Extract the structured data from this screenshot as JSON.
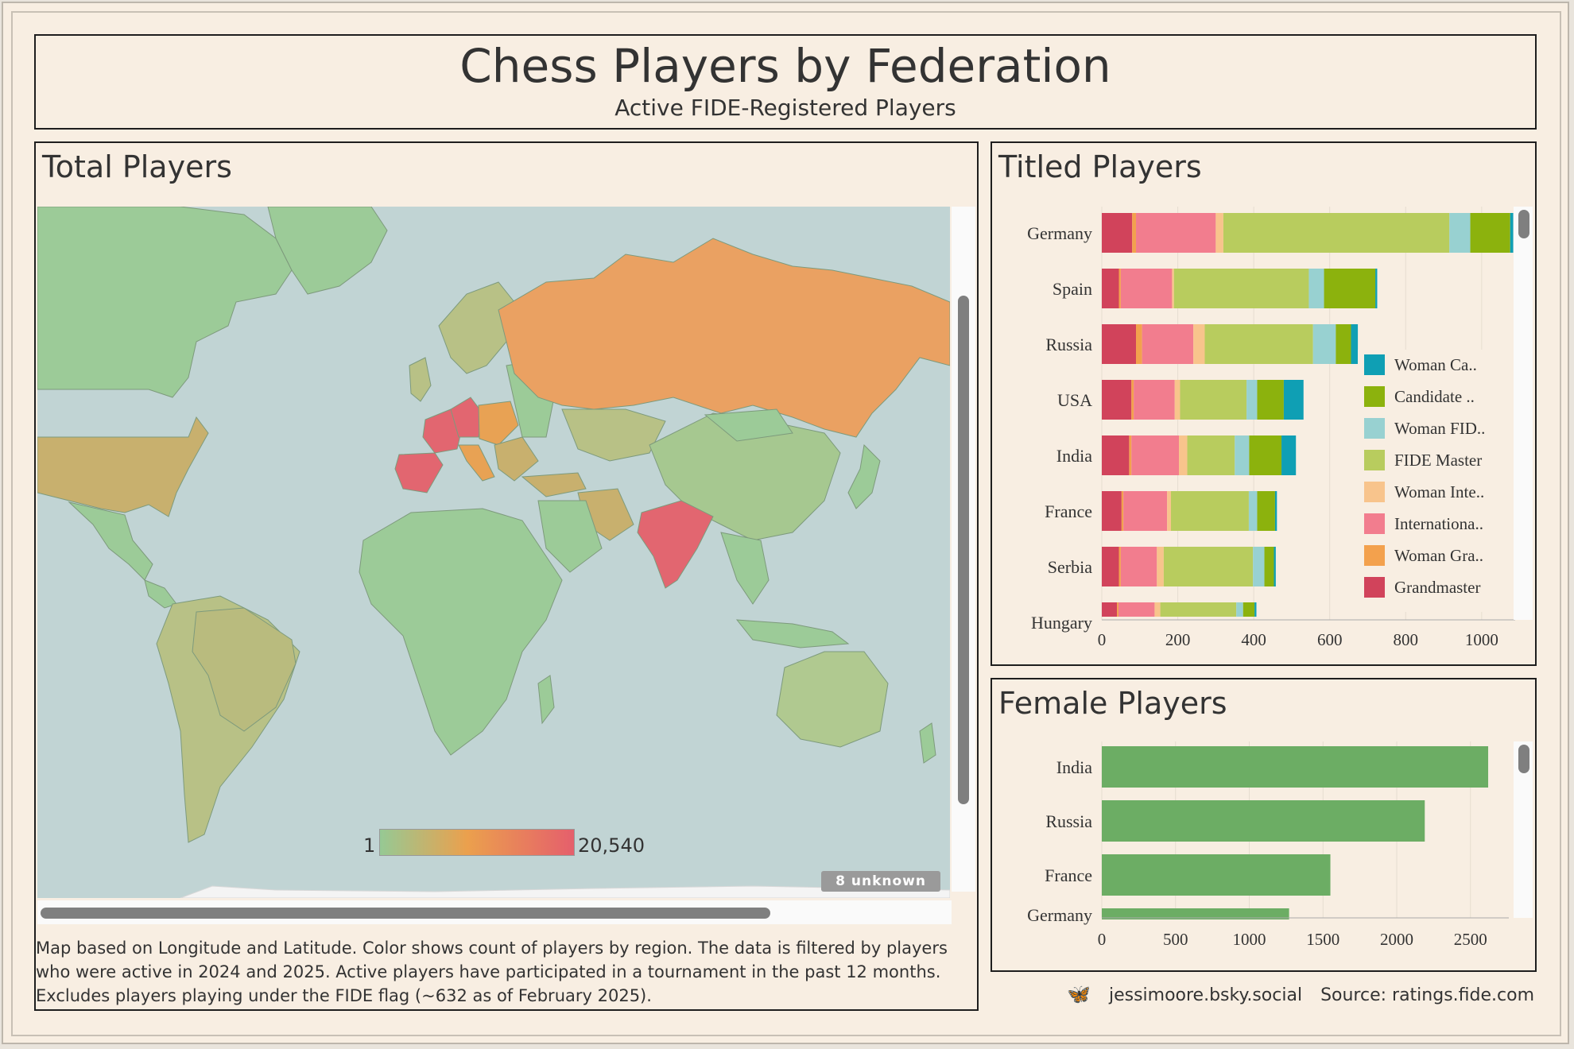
{
  "header": {
    "title": "Chess Players by Federation",
    "subtitle": "Active FIDE-Registered Players"
  },
  "map_panel": {
    "title": "Total Players",
    "legend_min": "1",
    "legend_max": "20,540",
    "unknown_badge": "8 unknown",
    "note_lines": [
      "Map based on Longitude and Latitude.  Color shows count of players by region.  The data is filtered by players",
      "who were active in 2024 and 2025. Active players have participated in a tournament in the past 12 months.",
      "Excludes players playing under the FIDE flag (~632 as of February 2025)."
    ],
    "colors": {
      "ocean": "#c1d4d4",
      "low": "#96c994",
      "mid": "#eba04d",
      "high": "#e55f6c"
    }
  },
  "chart_data": [
    {
      "type": "bar",
      "orientation": "horizontal",
      "stacked": true,
      "title": "Titled Players",
      "categories": [
        "Germany",
        "Spain",
        "Russia",
        "USA",
        "India",
        "France",
        "Serbia",
        "Hungary"
      ],
      "series": [
        {
          "name": "Grandmaster",
          "color": "#d1435b",
          "values": [
            80,
            45,
            90,
            78,
            72,
            52,
            45,
            40
          ]
        },
        {
          "name": "Woman Gra..",
          "color": "#f3a14d",
          "values": [
            10,
            5,
            16,
            6,
            6,
            5,
            5,
            4
          ]
        },
        {
          "name": "Internationa..",
          "color": "#f27d8e",
          "values": [
            210,
            135,
            135,
            108,
            125,
            115,
            95,
            95
          ]
        },
        {
          "name": "Woman Inte..",
          "color": "#f8c48c",
          "values": [
            20,
            5,
            30,
            14,
            22,
            10,
            18,
            15
          ]
        },
        {
          "name": "FIDE Master",
          "color": "#b8cc5e",
          "values": [
            595,
            355,
            285,
            175,
            125,
            205,
            235,
            200
          ]
        },
        {
          "name": "Woman FID..",
          "color": "#98d1d1",
          "values": [
            55,
            40,
            60,
            28,
            38,
            22,
            30,
            18
          ]
        },
        {
          "name": "Candidate ..",
          "color": "#8cb20d",
          "values": [
            105,
            135,
            40,
            70,
            85,
            47,
            25,
            30
          ]
        },
        {
          "name": "Woman Ca..",
          "color": "#0f9fb4",
          "values": [
            8,
            5,
            18,
            52,
            38,
            5,
            5,
            5
          ]
        }
      ],
      "xticks": [
        0,
        200,
        400,
        600,
        800,
        1000
      ],
      "xlim": [
        0,
        1130
      ],
      "legend_position": "right"
    },
    {
      "type": "bar",
      "orientation": "horizontal",
      "title": "Female Players",
      "categories": [
        "India",
        "Russia",
        "France",
        "Germany"
      ],
      "values": [
        2620,
        2190,
        1550,
        1270
      ],
      "color": "#6cad64",
      "xticks": [
        0,
        500,
        1000,
        1500,
        2000,
        2500
      ],
      "xlim": [
        0,
        2760
      ]
    }
  ],
  "footer": {
    "social": "jessimoore.bsky.social",
    "source": "Source: ratings.fide.com"
  }
}
